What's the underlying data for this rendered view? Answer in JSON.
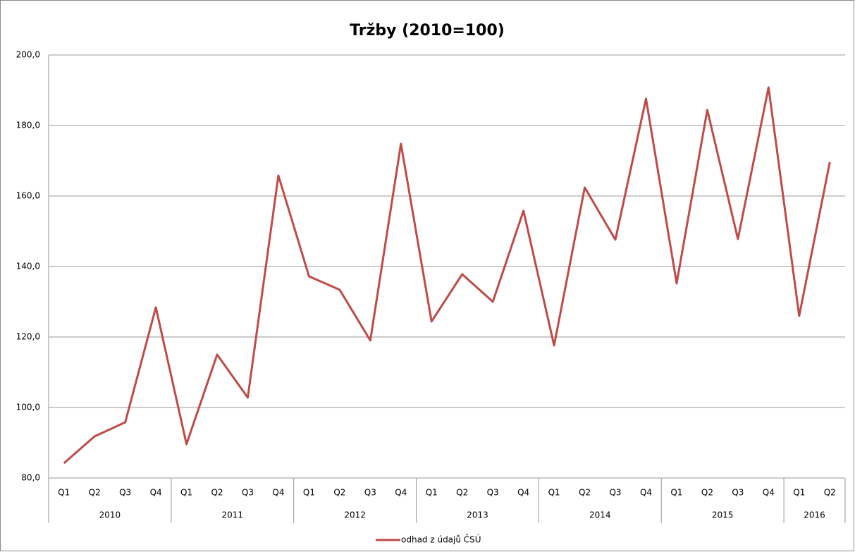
{
  "chart_data": {
    "type": "line",
    "title": "Tržby (2010=100)",
    "groups": [
      {
        "name": "2010",
        "categories": [
          "Q1",
          "Q2",
          "Q3",
          "Q4"
        ]
      },
      {
        "name": "2011",
        "categories": [
          "Q1",
          "Q2",
          "Q3",
          "Q4"
        ]
      },
      {
        "name": "2012",
        "categories": [
          "Q1",
          "Q2",
          "Q3",
          "Q4"
        ]
      },
      {
        "name": "2013",
        "categories": [
          "Q1",
          "Q2",
          "Q3",
          "Q4"
        ]
      },
      {
        "name": "2014",
        "categories": [
          "Q1",
          "Q2",
          "Q3",
          "Q4"
        ]
      },
      {
        "name": "2015",
        "categories": [
          "Q1",
          "Q2",
          "Q3",
          "Q4"
        ]
      },
      {
        "name": "2016",
        "categories": [
          "Q1",
          "Q2"
        ]
      }
    ],
    "series": [
      {
        "name": "odhad z údajů ČSÚ",
        "color": "#be4b48",
        "values": [
          84.2,
          91.8,
          95.8,
          128.4,
          89.6,
          115,
          102.8,
          165.8,
          137.2,
          133.4,
          119,
          174.8,
          124.4,
          137.8,
          130,
          155.8,
          117.6,
          162.4,
          147.6,
          187.6,
          135.2,
          184.4,
          147.8,
          190.8,
          126,
          169.6
        ]
      }
    ],
    "ylim": [
      80,
      200
    ],
    "yticks": [
      {
        "value": 80,
        "label": "80,0"
      },
      {
        "value": 100,
        "label": "100,0"
      },
      {
        "value": 120,
        "label": "120,0"
      },
      {
        "value": 140,
        "label": "140,0"
      },
      {
        "value": 160,
        "label": "160,0"
      },
      {
        "value": 180,
        "label": "180,0"
      },
      {
        "value": 200,
        "label": "200,0"
      }
    ],
    "grid": true,
    "legend": "bottom"
  }
}
